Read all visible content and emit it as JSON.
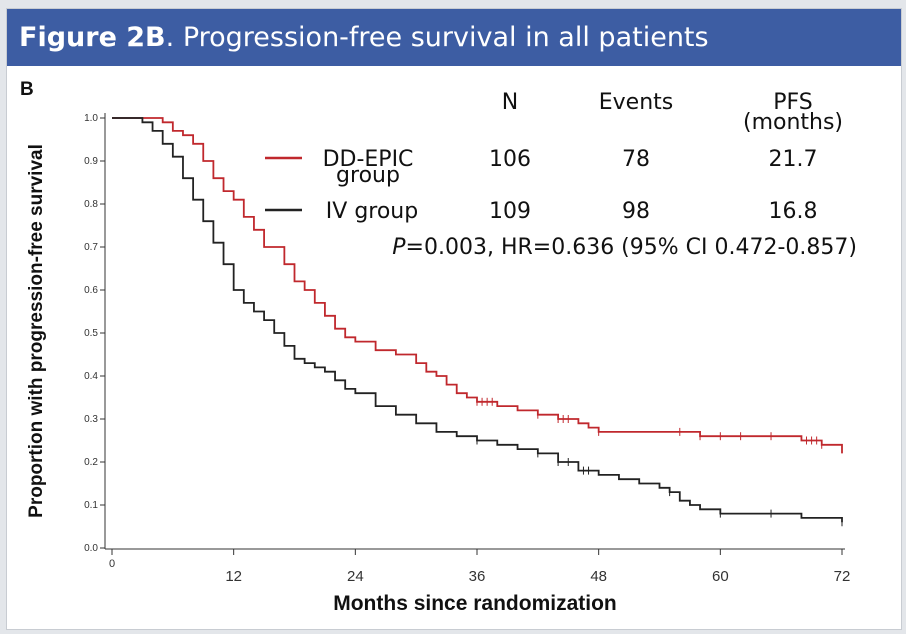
{
  "header": {
    "figure_label": "Figure 2B",
    "caption": ". Progression-free survival in all patients"
  },
  "chart_data": {
    "type": "line",
    "panel_label": "B",
    "title": "Progression-free survival in all patients",
    "xlabel": "Months since randomization",
    "ylabel": "Proportion with progression-free survival",
    "xlim": [
      0,
      72
    ],
    "ylim": [
      0,
      1.0
    ],
    "x_ticks": [
      0,
      12,
      24,
      36,
      48,
      60,
      72
    ],
    "y_ticks": [
      0.0,
      0.1,
      0.2,
      0.3,
      0.4,
      0.5,
      0.6,
      0.7,
      0.8,
      0.9,
      1.0
    ],
    "y_tick_labels": [
      "0.0",
      "0.1",
      "0.2",
      "0.3",
      "0.4",
      "0.5",
      "0.6",
      "0.7",
      "0.8",
      "0.9",
      "1.0"
    ],
    "legend": {
      "headers": {
        "n": "N",
        "events": "Events",
        "pfs_line1": "PFS",
        "pfs_line2": "(months)"
      },
      "rows": [
        {
          "name_line1": "DD-EPIC",
          "name_line2": "group",
          "n": "106",
          "events": "78",
          "pfs": "21.7",
          "color": "#c0282d"
        },
        {
          "name_line1": "IV group",
          "name_line2": "",
          "n": "109",
          "events": "98",
          "pfs": "16.8",
          "color": "#222222"
        }
      ],
      "stat_p_symbol": "P",
      "stat_rest": "=0.003, HR=0.636 (95% CI 0.472-0.857)"
    },
    "series": [
      {
        "name": "DD-EPIC group",
        "color": "#c0282d",
        "x": [
          0,
          4,
          5,
          6,
          7,
          8,
          9,
          10,
          11,
          12,
          13,
          14,
          15,
          16,
          17,
          18,
          19,
          20,
          21,
          22,
          23,
          24,
          26,
          28,
          30,
          31,
          32,
          33,
          34,
          35,
          36,
          38,
          40,
          42,
          44,
          46,
          47,
          48,
          50,
          52,
          54,
          56,
          58,
          60,
          62,
          64,
          66,
          68,
          70,
          71,
          72
        ],
        "y": [
          1.0,
          1.0,
          0.99,
          0.97,
          0.96,
          0.94,
          0.9,
          0.86,
          0.83,
          0.81,
          0.77,
          0.74,
          0.7,
          0.7,
          0.66,
          0.62,
          0.6,
          0.57,
          0.54,
          0.51,
          0.49,
          0.48,
          0.46,
          0.45,
          0.43,
          0.41,
          0.4,
          0.38,
          0.36,
          0.35,
          0.34,
          0.33,
          0.32,
          0.31,
          0.3,
          0.29,
          0.28,
          0.27,
          0.27,
          0.27,
          0.27,
          0.27,
          0.26,
          0.26,
          0.26,
          0.26,
          0.26,
          0.25,
          0.24,
          0.24,
          0.22
        ]
      },
      {
        "name": "IV group",
        "color": "#222222",
        "x": [
          0,
          2,
          3,
          4,
          5,
          6,
          7,
          8,
          9,
          10,
          11,
          12,
          13,
          14,
          15,
          16,
          17,
          18,
          19,
          20,
          21,
          22,
          23,
          24,
          26,
          28,
          30,
          32,
          34,
          36,
          38,
          40,
          42,
          44,
          46,
          48,
          50,
          52,
          54,
          55,
          56,
          57,
          58,
          60,
          64,
          68,
          72
        ],
        "y": [
          1.0,
          1.0,
          0.99,
          0.97,
          0.94,
          0.91,
          0.86,
          0.81,
          0.76,
          0.71,
          0.66,
          0.6,
          0.57,
          0.55,
          0.53,
          0.5,
          0.47,
          0.44,
          0.43,
          0.42,
          0.41,
          0.39,
          0.37,
          0.36,
          0.33,
          0.31,
          0.29,
          0.27,
          0.26,
          0.25,
          0.24,
          0.23,
          0.22,
          0.2,
          0.18,
          0.17,
          0.16,
          0.15,
          0.14,
          0.13,
          0.11,
          0.1,
          0.09,
          0.08,
          0.08,
          0.07,
          0.06
        ]
      }
    ],
    "censor_marks": [
      {
        "series": "DD-EPIC group",
        "x": [
          36,
          36.5,
          37,
          37.5,
          42,
          44,
          44.5,
          45,
          48,
          56,
          58,
          60,
          62,
          65,
          68.5,
          69,
          69.5,
          70
        ]
      },
      {
        "series": "IV group",
        "x": [
          36,
          42,
          44,
          45,
          46.5,
          47,
          55,
          60,
          65,
          72
        ]
      }
    ]
  }
}
